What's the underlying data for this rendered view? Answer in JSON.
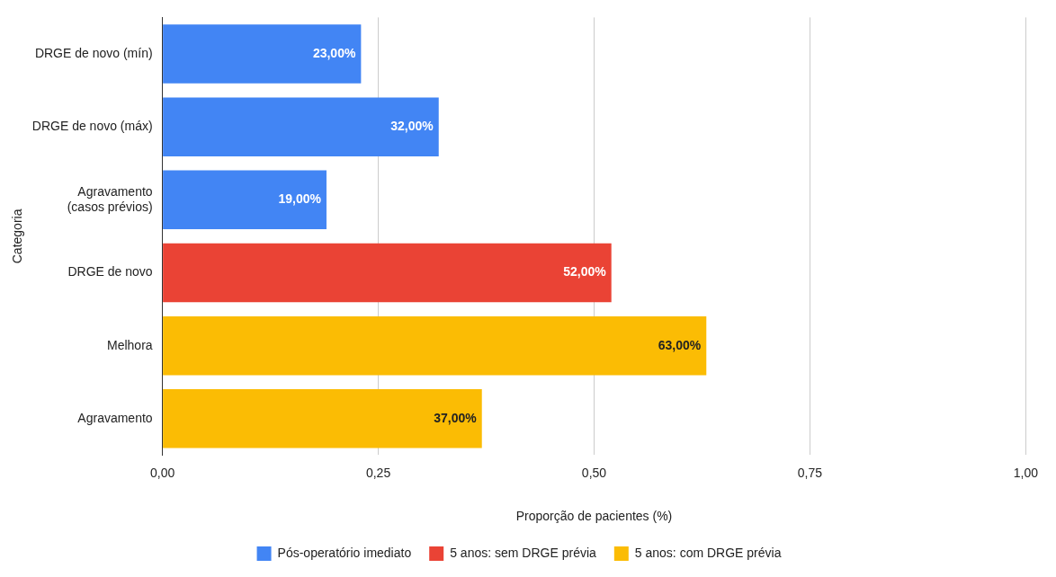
{
  "chart_data": {
    "type": "bar",
    "orientation": "horizontal",
    "stacked": true,
    "xlabel": "Proporção de pacientes (%)",
    "ylabel": "Categoria",
    "categories": [
      "DRGE de novo (mín)",
      "DRGE de novo (máx)",
      "Agravamento (casos prévios)",
      "DRGE de novo",
      "Melhora",
      "Agravamento"
    ],
    "series": [
      {
        "name": "Pós-operatório imediato",
        "color": "#4285f4",
        "values": [
          0.23,
          0.32,
          0.19,
          null,
          null,
          null
        ],
        "value_labels": [
          "23,00%",
          "32,00%",
          "19,00%",
          null,
          null,
          null
        ]
      },
      {
        "name": "5 anos: sem DRGE prévia",
        "color": "#ea4335",
        "values": [
          null,
          null,
          null,
          0.52,
          null,
          null
        ],
        "value_labels": [
          null,
          null,
          null,
          "52,00%",
          null,
          null
        ]
      },
      {
        "name": "5 anos: com DRGE prévia",
        "color": "#fbbc04",
        "values": [
          null,
          null,
          null,
          null,
          0.63,
          0.37
        ],
        "value_labels": [
          null,
          null,
          null,
          null,
          "63,00%",
          "37,00%"
        ]
      }
    ],
    "xlim": [
      0,
      1
    ],
    "xticks": [
      {
        "value": 0,
        "label": "0,00"
      },
      {
        "value": 0.25,
        "label": "0,25"
      },
      {
        "value": 0.5,
        "label": "0,50"
      },
      {
        "value": 0.75,
        "label": "0,75"
      },
      {
        "value": 1,
        "label": "1,00"
      }
    ],
    "grid": "x",
    "legend": "bottom"
  }
}
